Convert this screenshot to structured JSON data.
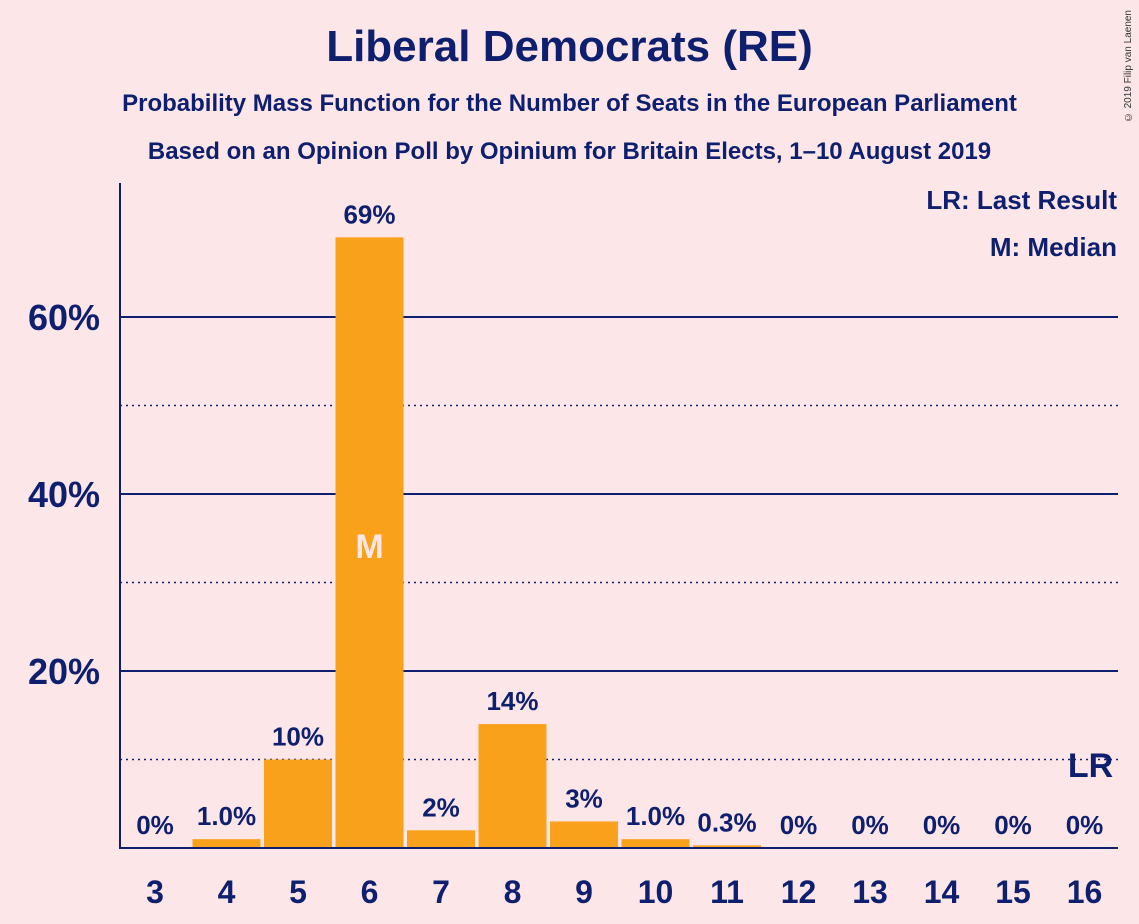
{
  "chart_data": {
    "type": "bar",
    "title": "Liberal Democrats (RE)",
    "subtitle": "Probability Mass Function for the Number of Seats in the European Parliament",
    "subtitle2": "Based on an Opinion Poll by Opinium for Britain Elects, 1–10 August 2019",
    "categories": [
      "3",
      "4",
      "5",
      "6",
      "7",
      "8",
      "9",
      "10",
      "11",
      "12",
      "13",
      "14",
      "15",
      "16"
    ],
    "values": [
      0,
      1.0,
      10,
      69,
      2,
      14,
      3,
      1.0,
      0.3,
      0,
      0,
      0,
      0,
      0
    ],
    "value_labels": [
      "0%",
      "1.0%",
      "10%",
      "69%",
      "2%",
      "14%",
      "3%",
      "1.0%",
      "0.3%",
      "0%",
      "0%",
      "0%",
      "0%",
      "0%"
    ],
    "y_ticks": [
      {
        "value": 20,
        "label": "20%"
      },
      {
        "value": 40,
        "label": "40%"
      },
      {
        "value": 60,
        "label": "60%"
      }
    ],
    "ylim": [
      0,
      75
    ],
    "minor_gridlines": [
      10,
      30,
      50
    ],
    "median_category": "6",
    "median_marker": "M",
    "last_result_category": "16",
    "last_result_marker": "LR",
    "legend": [
      "LR: Last Result",
      "M: Median"
    ],
    "bar_color": "#f9a11b",
    "axis_color": "#0d1f6e"
  },
  "copyright": "© 2019 Filip van Laenen"
}
